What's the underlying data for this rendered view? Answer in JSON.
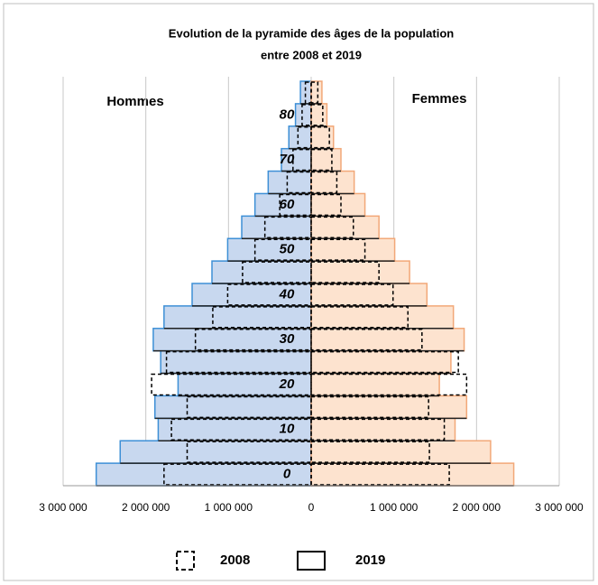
{
  "chart_data": {
    "type": "pyramid",
    "title": [
      "Evolution de la pyramide des âges de la population",
      "entre 2008 et 2019"
    ],
    "sides": [
      "Hommes",
      "Femmes"
    ],
    "side_fill": [
      "#c8d8ef",
      "#fde3cf"
    ],
    "side_edge": [
      "#3d8fd6",
      "#f2a878"
    ],
    "categories": [
      "0",
      null,
      "10",
      null,
      "20",
      null,
      "30",
      null,
      "40",
      null,
      "50",
      null,
      "60",
      null,
      "70",
      null,
      "80",
      null
    ],
    "series": [
      {
        "name": "2008",
        "style": "dashed",
        "values": [
          [
            1780000,
            1500000,
            1690000,
            1500000,
            1930000,
            1750000,
            1400000,
            1190000,
            1010000,
            830000,
            680000,
            560000,
            380000,
            290000,
            220000,
            160000,
            110000,
            70000
          ],
          [
            1670000,
            1430000,
            1610000,
            1420000,
            1880000,
            1780000,
            1340000,
            1170000,
            990000,
            820000,
            650000,
            510000,
            360000,
            310000,
            250000,
            220000,
            140000,
            80000
          ]
        ]
      },
      {
        "name": "2019",
        "style": "solid",
        "values": [
          [
            2600000,
            2310000,
            1850000,
            1890000,
            1610000,
            1820000,
            1910000,
            1780000,
            1440000,
            1200000,
            1010000,
            840000,
            680000,
            520000,
            360000,
            270000,
            190000,
            130000
          ],
          [
            2450000,
            2170000,
            1740000,
            1880000,
            1550000,
            1690000,
            1850000,
            1720000,
            1400000,
            1190000,
            1010000,
            820000,
            650000,
            520000,
            360000,
            270000,
            190000,
            130000
          ]
        ]
      }
    ],
    "xlim": [
      -3000000,
      3000000
    ],
    "xticks": [
      {
        "value": -3000000,
        "label": "3 000 000"
      },
      {
        "value": -2000000,
        "label": "2 000 000"
      },
      {
        "value": -1000000,
        "label": "1 000 000"
      },
      0,
      {
        "value": 1000000,
        "label": "1 000 000"
      },
      {
        "value": 2000000,
        "label": "2 000 000"
      },
      {
        "value": 3000000,
        "label": "3 000 000"
      }
    ],
    "grid": true
  }
}
